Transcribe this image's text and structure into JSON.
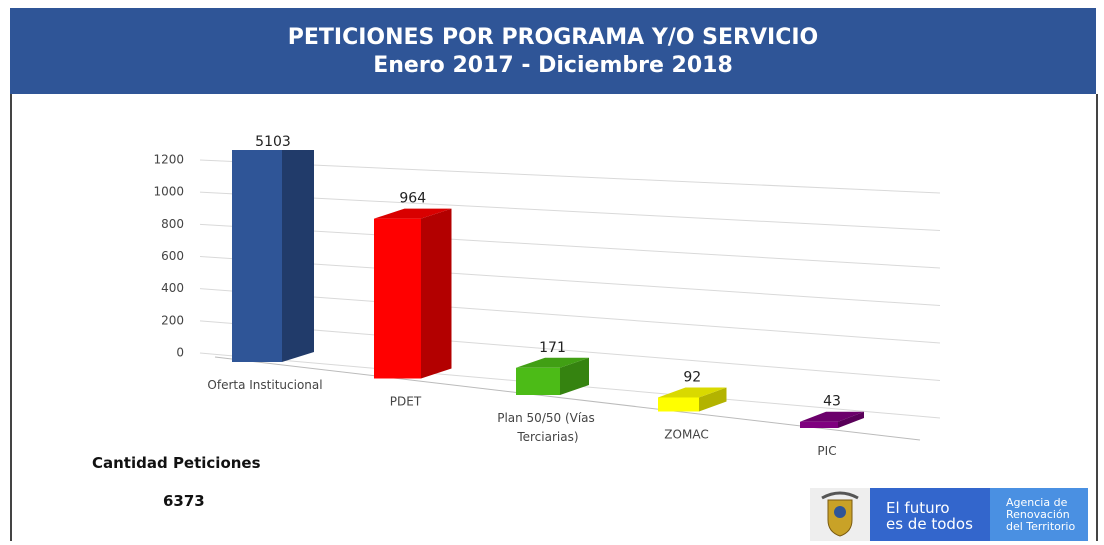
{
  "chart_data": {
    "type": "bar3d",
    "title": "PETICIONES POR PROGRAMA Y/O SERVICIO",
    "subtitle": "Enero 2017 - Diciembre 2018",
    "categories": [
      "Oferta Institucional",
      "PDET",
      "Plan 50/50 (Vías Terciarias)",
      "ZOMAC",
      "PIC"
    ],
    "values": [
      5103,
      964,
      171,
      92,
      43
    ],
    "colors": [
      "#2f5597",
      "#ff0000",
      "#4cbb17",
      "#ffff00",
      "#7f007f"
    ],
    "ylim": [
      0,
      1200
    ],
    "yticks": [
      0,
      200,
      400,
      600,
      800,
      1000,
      1200
    ],
    "grid": true
  },
  "summary": {
    "label": "Cantidad Peticiones",
    "value": "6373"
  },
  "logo": {
    "slogan_1": "El futuro",
    "slogan_2": "es de todos",
    "agency_1": "Agencia de",
    "agency_2": "Renovación",
    "agency_3": "del Territorio"
  }
}
